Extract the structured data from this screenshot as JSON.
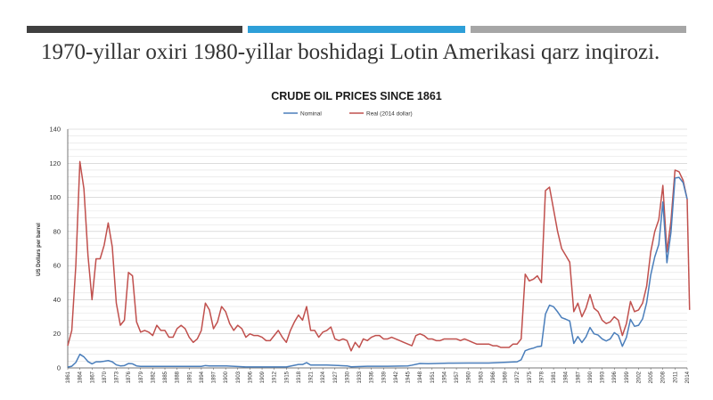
{
  "slide": {
    "title": "1970-yillar oxiri 1980-yillar boshidagi Lotin Amerikasi qarz inqirozi.",
    "accent_colors": [
      "#404040",
      "#2e9fd8",
      "#a6a6a6"
    ]
  },
  "chart_data": {
    "type": "line",
    "title": "CRUDE OIL PRICES SINCE 1861",
    "ylabel": "US Dollars per barrel",
    "xlabel": "",
    "ylim": [
      0,
      140
    ],
    "yticks": [
      0,
      20,
      40,
      60,
      80,
      100,
      120,
      140
    ],
    "xlim": [
      1861,
      2014
    ],
    "xticks": [
      1861,
      1864,
      1867,
      1870,
      1873,
      1876,
      1879,
      1882,
      1885,
      1888,
      1891,
      1894,
      1897,
      1900,
      1903,
      1906,
      1909,
      1912,
      1915,
      1918,
      1921,
      1924,
      1927,
      1930,
      1933,
      1936,
      1939,
      1942,
      1945,
      1948,
      1951,
      1954,
      1957,
      1960,
      1963,
      1966,
      1969,
      1972,
      1975,
      1978,
      1981,
      1984,
      1987,
      1990,
      1993,
      1996,
      1999,
      2002,
      2005,
      2008,
      2011,
      2014
    ],
    "grid": true,
    "legend_position": "top",
    "series": [
      {
        "name": "Nominal",
        "color": "#4a7ebb",
        "points": [
          [
            1861,
            0.5
          ],
          [
            1862,
            1
          ],
          [
            1863,
            3.2
          ],
          [
            1864,
            8
          ],
          [
            1865,
            6.5
          ],
          [
            1866,
            3.7
          ],
          [
            1867,
            2.4
          ],
          [
            1868,
            3.6
          ],
          [
            1869,
            3.6
          ],
          [
            1870,
            3.9
          ],
          [
            1871,
            4.3
          ],
          [
            1872,
            3.6
          ],
          [
            1873,
            1.8
          ],
          [
            1874,
            1.2
          ],
          [
            1875,
            1.4
          ],
          [
            1876,
            2.6
          ],
          [
            1877,
            2.4
          ],
          [
            1878,
            1.2
          ],
          [
            1879,
            0.9
          ],
          [
            1880,
            0.9
          ],
          [
            1885,
            0.9
          ],
          [
            1890,
            0.9
          ],
          [
            1894,
            0.9
          ],
          [
            1895,
            1.4
          ],
          [
            1896,
            1.2
          ],
          [
            1900,
            1.2
          ],
          [
            1905,
            0.6
          ],
          [
            1910,
            0.6
          ],
          [
            1915,
            0.6
          ],
          [
            1918,
            2
          ],
          [
            1919,
            2
          ],
          [
            1920,
            3.1
          ],
          [
            1921,
            1.7
          ],
          [
            1925,
            1.7
          ],
          [
            1930,
            1.2
          ],
          [
            1931,
            0.65
          ],
          [
            1935,
            1
          ],
          [
            1940,
            1
          ],
          [
            1945,
            1.2
          ],
          [
            1946,
            1.6
          ],
          [
            1948,
            2.6
          ],
          [
            1950,
            2.5
          ],
          [
            1955,
            2.8
          ],
          [
            1960,
            2.9
          ],
          [
            1965,
            2.9
          ],
          [
            1970,
            3.4
          ],
          [
            1972,
            3.6
          ],
          [
            1973,
            4.8
          ],
          [
            1974,
            10.1
          ],
          [
            1975,
            11
          ],
          [
            1976,
            11.6
          ],
          [
            1977,
            12.5
          ],
          [
            1978,
            12.8
          ],
          [
            1979,
            31.6
          ],
          [
            1980,
            36.8
          ],
          [
            1981,
            35.9
          ],
          [
            1982,
            32.9
          ],
          [
            1983,
            29.5
          ],
          [
            1984,
            28.6
          ],
          [
            1985,
            27.5
          ],
          [
            1986,
            14.4
          ],
          [
            1987,
            18.4
          ],
          [
            1988,
            14.9
          ],
          [
            1989,
            18.2
          ],
          [
            1990,
            23.7
          ],
          [
            1991,
            20
          ],
          [
            1992,
            19.3
          ],
          [
            1993,
            17
          ],
          [
            1994,
            15.8
          ],
          [
            1995,
            17
          ],
          [
            1996,
            20.7
          ],
          [
            1997,
            19.1
          ],
          [
            1998,
            12.7
          ],
          [
            1999,
            17.9
          ],
          [
            2000,
            28.5
          ],
          [
            2001,
            24.4
          ],
          [
            2002,
            25
          ],
          [
            2003,
            28.8
          ],
          [
            2004,
            38.3
          ],
          [
            2005,
            54.5
          ],
          [
            2006,
            65.1
          ],
          [
            2007,
            72.4
          ],
          [
            2008,
            97.3
          ],
          [
            2009,
            61.7
          ],
          [
            2010,
            79.5
          ],
          [
            2011,
            111.3
          ],
          [
            2012,
            111.7
          ],
          [
            2013,
            108.7
          ],
          [
            2014,
            99
          ]
        ]
      },
      {
        "name": "Real (2014 dollar)",
        "color": "#c0504d",
        "points": [
          [
            1861,
            13
          ],
          [
            1862,
            22
          ],
          [
            1863,
            60
          ],
          [
            1864,
            121
          ],
          [
            1865,
            105
          ],
          [
            1866,
            66
          ],
          [
            1867,
            40
          ],
          [
            1868,
            64
          ],
          [
            1869,
            64
          ],
          [
            1870,
            72
          ],
          [
            1871,
            85
          ],
          [
            1872,
            71
          ],
          [
            1873,
            38
          ],
          [
            1874,
            25
          ],
          [
            1875,
            28
          ],
          [
            1876,
            56
          ],
          [
            1877,
            54
          ],
          [
            1878,
            27
          ],
          [
            1879,
            21
          ],
          [
            1880,
            22
          ],
          [
            1881,
            21
          ],
          [
            1882,
            19
          ],
          [
            1883,
            25
          ],
          [
            1884,
            22
          ],
          [
            1885,
            22
          ],
          [
            1886,
            18
          ],
          [
            1887,
            18
          ],
          [
            1888,
            23
          ],
          [
            1889,
            25
          ],
          [
            1890,
            23
          ],
          [
            1891,
            18
          ],
          [
            1892,
            15
          ],
          [
            1893,
            17
          ],
          [
            1894,
            22
          ],
          [
            1895,
            38
          ],
          [
            1896,
            34
          ],
          [
            1897,
            23
          ],
          [
            1898,
            27
          ],
          [
            1899,
            36
          ],
          [
            1900,
            33
          ],
          [
            1901,
            26
          ],
          [
            1902,
            22
          ],
          [
            1903,
            25
          ],
          [
            1904,
            23
          ],
          [
            1905,
            18
          ],
          [
            1906,
            20
          ],
          [
            1907,
            19
          ],
          [
            1908,
            19
          ],
          [
            1909,
            18
          ],
          [
            1910,
            16
          ],
          [
            1911,
            16
          ],
          [
            1912,
            19
          ],
          [
            1913,
            22
          ],
          [
            1914,
            18
          ],
          [
            1915,
            15
          ],
          [
            1916,
            22
          ],
          [
            1917,
            27
          ],
          [
            1918,
            31
          ],
          [
            1919,
            28
          ],
          [
            1920,
            36
          ],
          [
            1921,
            22
          ],
          [
            1922,
            22
          ],
          [
            1923,
            18
          ],
          [
            1924,
            21
          ],
          [
            1925,
            22
          ],
          [
            1926,
            24
          ],
          [
            1927,
            17
          ],
          [
            1928,
            16
          ],
          [
            1929,
            17
          ],
          [
            1930,
            16
          ],
          [
            1931,
            10
          ],
          [
            1932,
            15
          ],
          [
            1933,
            12
          ],
          [
            1934,
            17
          ],
          [
            1935,
            16
          ],
          [
            1936,
            18
          ],
          [
            1937,
            19
          ],
          [
            1938,
            19
          ],
          [
            1939,
            17
          ],
          [
            1940,
            17
          ],
          [
            1941,
            18
          ],
          [
            1942,
            17
          ],
          [
            1943,
            16
          ],
          [
            1944,
            15
          ],
          [
            1945,
            14
          ],
          [
            1946,
            13
          ],
          [
            1947,
            19
          ],
          [
            1948,
            20
          ],
          [
            1949,
            19
          ],
          [
            1950,
            17
          ],
          [
            1951,
            17
          ],
          [
            1952,
            16
          ],
          [
            1953,
            16
          ],
          [
            1954,
            17
          ],
          [
            1955,
            17
          ],
          [
            1956,
            17
          ],
          [
            1957,
            17
          ],
          [
            1958,
            16
          ],
          [
            1959,
            17
          ],
          [
            1960,
            16
          ],
          [
            1961,
            15
          ],
          [
            1962,
            14
          ],
          [
            1963,
            14
          ],
          [
            1964,
            14
          ],
          [
            1965,
            14
          ],
          [
            1966,
            13
          ],
          [
            1967,
            13
          ],
          [
            1968,
            12
          ],
          [
            1969,
            12
          ],
          [
            1970,
            12
          ],
          [
            1971,
            14
          ],
          [
            1972,
            14
          ],
          [
            1973,
            17
          ],
          [
            1974,
            55
          ],
          [
            1975,
            51
          ],
          [
            1976,
            52
          ],
          [
            1977,
            54
          ],
          [
            1978,
            50
          ],
          [
            1979,
            104
          ],
          [
            1980,
            106
          ],
          [
            1981,
            93
          ],
          [
            1982,
            80
          ],
          [
            1983,
            70
          ],
          [
            1984,
            66
          ],
          [
            1985,
            62
          ],
          [
            1986,
            33
          ],
          [
            1987,
            38
          ],
          [
            1988,
            30
          ],
          [
            1989,
            35
          ],
          [
            1990,
            43
          ],
          [
            1991,
            35
          ],
          [
            1992,
            33
          ],
          [
            1993,
            28
          ],
          [
            1994,
            26
          ],
          [
            1995,
            27
          ],
          [
            1996,
            30
          ],
          [
            1997,
            28
          ],
          [
            1998,
            19
          ],
          [
            1999,
            26
          ],
          [
            2000,
            39
          ],
          [
            2001,
            33
          ],
          [
            2002,
            34
          ],
          [
            2003,
            38
          ],
          [
            2004,
            48
          ],
          [
            2005,
            68
          ],
          [
            2006,
            80
          ],
          [
            2007,
            87
          ],
          [
            2008,
            107
          ],
          [
            2009,
            68
          ],
          [
            2010,
            86
          ],
          [
            2011,
            116
          ],
          [
            2012,
            115
          ],
          [
            2013,
            110
          ],
          [
            2014,
            99
          ],
          [
            2014.6,
            34
          ]
        ]
      }
    ]
  }
}
